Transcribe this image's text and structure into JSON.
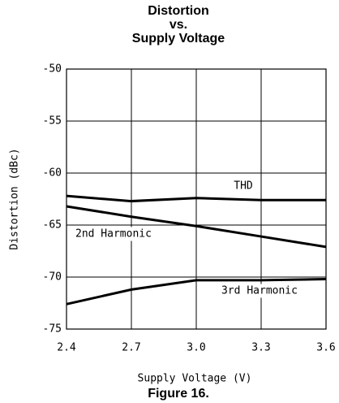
{
  "chart_data": {
    "type": "line",
    "title": [
      "Distortion",
      "vs.",
      "Supply Voltage"
    ],
    "caption": "Figure 16.",
    "xlabel": "Supply Voltage (V)",
    "ylabel": "Distortion (dBc)",
    "x": [
      2.4,
      2.7,
      3.0,
      3.3,
      3.6
    ],
    "series": [
      {
        "name": "THD",
        "color": "#000000",
        "values": [
          -62.2,
          -62.7,
          -62.4,
          -62.6,
          -62.6
        ]
      },
      {
        "name": "2nd Harmonic",
        "color": "#000000",
        "values": [
          -63.2,
          -64.2,
          -65.1,
          -66.1,
          -67.1
        ]
      },
      {
        "name": "3rd Harmonic",
        "color": "#000000",
        "values": [
          -72.6,
          -71.2,
          -70.3,
          -70.3,
          -70.2
        ]
      }
    ],
    "xlim": [
      2.4,
      3.6
    ],
    "xticks": [
      2.4,
      2.7,
      {
        "value": 3,
        "label": "3.0"
      },
      3.3,
      3.6
    ],
    "ylim": [
      -75,
      -50
    ],
    "yticks": [
      -50,
      -55,
      -60,
      -65,
      -70,
      -75
    ],
    "grid": true
  }
}
